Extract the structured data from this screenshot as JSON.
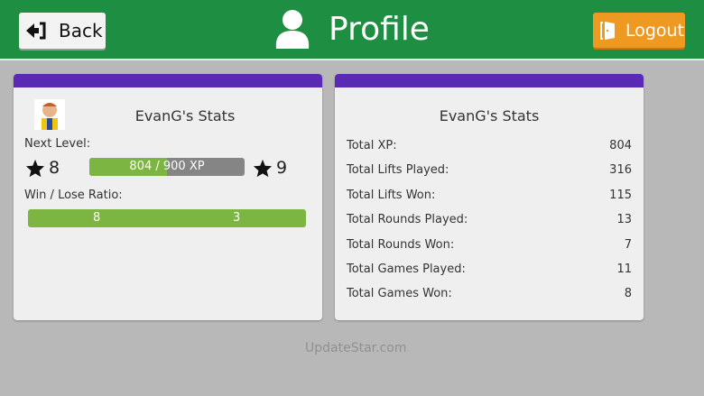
{
  "header": {
    "back_label": "Back",
    "title": "Profile",
    "logout_label": "Logout",
    "colors": {
      "header": "#1e8f42",
      "logout": "#ee9a22",
      "card_bar": "#5b2ab5",
      "progress": "#7db543"
    }
  },
  "left_card": {
    "title": "EvanG's Stats",
    "next_level_label": "Next Level:",
    "current_level": "8",
    "next_level": "9",
    "xp_text": "804 / 900 XP",
    "xp_fraction": 0.893,
    "win_lose_label": "Win / Lose Ratio:",
    "wins": "8",
    "losses": "3"
  },
  "right_card": {
    "title": "EvanG's Stats",
    "rows": [
      {
        "label": "Total XP:",
        "value": "804"
      },
      {
        "label": "Total Lifts Played:",
        "value": "316"
      },
      {
        "label": "Total Lifts Won:",
        "value": "115"
      },
      {
        "label": "Total Rounds Played:",
        "value": "13"
      },
      {
        "label": "Total Rounds Won:",
        "value": "7"
      },
      {
        "label": "Total Games Played:",
        "value": "11"
      },
      {
        "label": "Total Games Won:",
        "value": "8"
      }
    ]
  },
  "watermark": "UpdateStar.com"
}
